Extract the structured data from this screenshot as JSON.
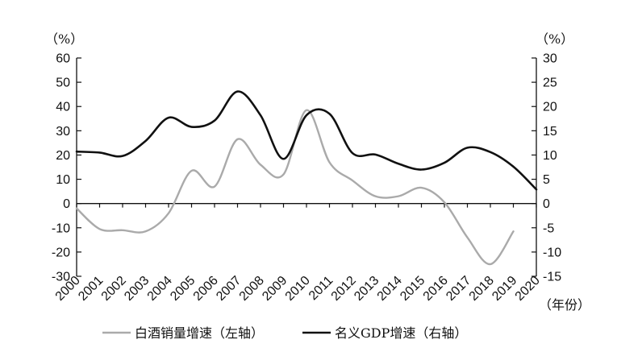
{
  "chart_data": {
    "type": "line",
    "x_unit_label": "（年份）",
    "y_left_unit": "（%）",
    "y_right_unit": "（%）",
    "x": [
      2000,
      2001,
      2002,
      2003,
      2004,
      2005,
      2006,
      2007,
      2008,
      2009,
      2010,
      2011,
      2012,
      2013,
      2014,
      2015,
      2016,
      2017,
      2018,
      2019,
      2020
    ],
    "x_tick_labels": [
      "2000",
      "2001",
      "2002",
      "2003",
      "2004",
      "2005",
      "2006",
      "2007",
      "2008",
      "2009",
      "2010",
      "2011",
      "2012",
      "2013",
      "2014",
      "2015",
      "2016",
      "2017",
      "2018",
      "2019",
      "2020"
    ],
    "y_left": {
      "min": -30,
      "max": 60,
      "ticks": [
        60,
        50,
        40,
        30,
        20,
        10,
        0,
        -10,
        -20,
        -30
      ]
    },
    "y_right": {
      "min": -15,
      "max": 30,
      "ticks": [
        30,
        25,
        20,
        15,
        10,
        5,
        0,
        -5,
        -10,
        -15
      ]
    },
    "series": [
      {
        "name": "白酒销量增速（左轴）",
        "axis": "left",
        "color": "#aaaaaa",
        "x": [
          2000,
          2001,
          2002,
          2003,
          2004,
          2005,
          2006,
          2007,
          2008,
          2009,
          2010,
          2011,
          2012,
          2013,
          2014,
          2015,
          2016,
          2017,
          2018,
          2019
        ],
        "values": [
          -2,
          -10.5,
          -11,
          -11.5,
          -4,
          13.5,
          7,
          26.5,
          16,
          12,
          38.5,
          17,
          9.5,
          3,
          3,
          6.5,
          0.5,
          -14,
          -25,
          -11.5
        ]
      },
      {
        "name": "名义GDP增速（右轴）",
        "axis": "right",
        "color": "#111111",
        "x": [
          2000,
          2001,
          2002,
          2003,
          2004,
          2005,
          2006,
          2007,
          2008,
          2009,
          2010,
          2011,
          2012,
          2013,
          2014,
          2015,
          2016,
          2017,
          2018,
          2019,
          2020
        ],
        "values": [
          10.7,
          10.5,
          9.8,
          12.9,
          17.7,
          15.8,
          17.1,
          23.1,
          18.2,
          9.2,
          18.2,
          18.5,
          10.4,
          10.1,
          8.2,
          7.0,
          8.4,
          11.5,
          10.6,
          7.6,
          2.9
        ]
      }
    ]
  }
}
